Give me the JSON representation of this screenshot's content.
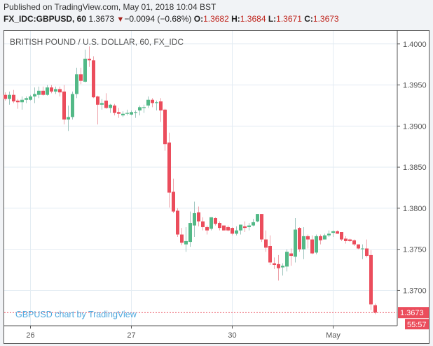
{
  "header": {
    "published": "Published on TradingView.com, May 01, 2018 10:04 BST",
    "symbol": "FX_IDC:GBPUSD, 60",
    "last": "1.3673",
    "change": "−0.0094 (−0.68%)",
    "direction_icon": "triangle-down-icon",
    "o_label": "O:",
    "o": "1.3682",
    "h_label": "H:",
    "h": "1.3684",
    "l_label": "L:",
    "l": "1.3671",
    "c_label": "C:",
    "c": "1.3673"
  },
  "watermark": "GBPUSD chart by TradingView",
  "colors": {
    "up": "#53b987",
    "down": "#eb4d5c",
    "up_wick": "#9cc4bd",
    "down_wick": "#eea3ab",
    "grid": "#e3ecf3",
    "watermark": "#4ea8de"
  },
  "chart_data": {
    "type": "candlestick",
    "title": "BRITISH POUND / U.S. DOLLAR, 60, FX_IDC",
    "ylim": [
      1.3657,
      1.4016
    ],
    "y_ticks": [
      "1.4000",
      "1.3950",
      "1.3900",
      "1.3850",
      "1.3800",
      "1.3750",
      "1.3700"
    ],
    "x_ticks": [
      {
        "label": "26",
        "bar": 6
      },
      {
        "label": "27",
        "bar": 30
      },
      {
        "label": "30",
        "bar": 54
      },
      {
        "label": "May",
        "bar": 78
      }
    ],
    "grid": true,
    "last_price_label": "1.3673",
    "countdown_label": "55:57",
    "ohlc": [
      [
        1.3938,
        1.3941,
        1.3931,
        1.3933
      ],
      [
        1.3933,
        1.3942,
        1.3926,
        1.3938
      ],
      [
        1.3938,
        1.3944,
        1.3928,
        1.393
      ],
      [
        1.3931,
        1.3933,
        1.3921,
        1.3929
      ],
      [
        1.3929,
        1.3936,
        1.392,
        1.3932
      ],
      [
        1.3932,
        1.3936,
        1.3928,
        1.3934
      ],
      [
        1.3932,
        1.3938,
        1.3931,
        1.3936
      ],
      [
        1.3936,
        1.3947,
        1.3928,
        1.3939
      ],
      [
        1.3938,
        1.3948,
        1.3934,
        1.3943
      ],
      [
        1.3943,
        1.3948,
        1.3937,
        1.3938
      ],
      [
        1.3938,
        1.395,
        1.3937,
        1.3947
      ],
      [
        1.3947,
        1.395,
        1.394,
        1.3942
      ],
      [
        1.3942,
        1.3948,
        1.3939,
        1.3945
      ],
      [
        1.3945,
        1.3948,
        1.3936,
        1.3941
      ],
      [
        1.3942,
        1.395,
        1.3902,
        1.3908
      ],
      [
        1.3908,
        1.3925,
        1.3894,
        1.3911
      ],
      [
        1.3911,
        1.3942,
        1.3908,
        1.3939
      ],
      [
        1.3939,
        1.3971,
        1.3934,
        1.3963
      ],
      [
        1.3963,
        1.3971,
        1.3951,
        1.3955
      ],
      [
        1.3954,
        1.3993,
        1.3953,
        1.3982
      ],
      [
        1.3982,
        1.3997,
        1.3972,
        1.398
      ],
      [
        1.398,
        1.3985,
        1.3934,
        1.3935
      ],
      [
        1.3936,
        1.3937,
        1.3902,
        1.3926
      ],
      [
        1.3926,
        1.3933,
        1.392,
        1.3928
      ],
      [
        1.3931,
        1.394,
        1.3921,
        1.3922
      ],
      [
        1.3922,
        1.3927,
        1.3916,
        1.3926
      ],
      [
        1.3925,
        1.3927,
        1.3913,
        1.3916
      ],
      [
        1.3917,
        1.3922,
        1.391,
        1.3915
      ],
      [
        1.3913,
        1.3918,
        1.3911,
        1.3915
      ],
      [
        1.3915,
        1.392,
        1.3913,
        1.3916
      ],
      [
        1.3914,
        1.3919,
        1.3913,
        1.3917
      ],
      [
        1.3916,
        1.3919,
        1.391,
        1.3917
      ],
      [
        1.3919,
        1.3925,
        1.3913,
        1.3923
      ],
      [
        1.3922,
        1.3926,
        1.3916,
        1.3923
      ],
      [
        1.3925,
        1.3936,
        1.3922,
        1.3932
      ],
      [
        1.3932,
        1.3934,
        1.3923,
        1.3928
      ],
      [
        1.3928,
        1.3931,
        1.3919,
        1.3929
      ],
      [
        1.393,
        1.3934,
        1.3905,
        1.3919
      ],
      [
        1.392,
        1.3921,
        1.387,
        1.3878
      ],
      [
        1.388,
        1.3892,
        1.3801,
        1.3819
      ],
      [
        1.382,
        1.3836,
        1.3794,
        1.3796
      ],
      [
        1.3797,
        1.38,
        1.3765,
        1.3768
      ],
      [
        1.3768,
        1.3776,
        1.3755,
        1.3758
      ],
      [
        1.3756,
        1.3777,
        1.3747,
        1.376
      ],
      [
        1.3759,
        1.3796,
        1.3753,
        1.3782
      ],
      [
        1.3779,
        1.3808,
        1.3765,
        1.3794
      ],
      [
        1.3795,
        1.3802,
        1.3778,
        1.3784
      ],
      [
        1.3784,
        1.3789,
        1.3773,
        1.3777
      ],
      [
        1.3777,
        1.3779,
        1.3768,
        1.3773
      ],
      [
        1.3775,
        1.3789,
        1.3773,
        1.3789
      ],
      [
        1.3788,
        1.3789,
        1.3779,
        1.3781
      ],
      [
        1.3782,
        1.3784,
        1.3773,
        1.3776
      ],
      [
        1.3779,
        1.3779,
        1.3773,
        1.3773
      ],
      [
        1.3777,
        1.3779,
        1.3772,
        1.3773
      ],
      [
        1.3776,
        1.3777,
        1.3767,
        1.3769
      ],
      [
        1.3769,
        1.3778,
        1.3767,
        1.3773
      ],
      [
        1.3773,
        1.378,
        1.3768,
        1.378
      ],
      [
        1.3778,
        1.3784,
        1.3771,
        1.3776
      ],
      [
        1.3777,
        1.3782,
        1.3773,
        1.3779
      ],
      [
        1.3779,
        1.3787,
        1.3778,
        1.3783
      ],
      [
        1.3784,
        1.3793,
        1.3783,
        1.3793
      ],
      [
        1.3793,
        1.3793,
        1.3759,
        1.3762
      ],
      [
        1.3762,
        1.3773,
        1.3747,
        1.3752
      ],
      [
        1.3754,
        1.3767,
        1.3731,
        1.3734
      ],
      [
        1.3733,
        1.374,
        1.3726,
        1.3731
      ],
      [
        1.3732,
        1.3743,
        1.3712,
        1.3727
      ],
      [
        1.3728,
        1.3733,
        1.3718,
        1.373
      ],
      [
        1.3729,
        1.375,
        1.3723,
        1.3747
      ],
      [
        1.3745,
        1.3751,
        1.373,
        1.3742
      ],
      [
        1.3741,
        1.3788,
        1.3734,
        1.3774
      ],
      [
        1.3776,
        1.3777,
        1.3747,
        1.375
      ],
      [
        1.375,
        1.3777,
        1.3738,
        1.3766
      ],
      [
        1.3766,
        1.3768,
        1.3751,
        1.3762
      ],
      [
        1.3762,
        1.3767,
        1.3744,
        1.3745
      ],
      [
        1.3746,
        1.3768,
        1.3744,
        1.3766
      ],
      [
        1.3766,
        1.3768,
        1.3756,
        1.3761
      ],
      [
        1.3762,
        1.3769,
        1.3762,
        1.3767
      ],
      [
        1.3767,
        1.3773,
        1.3765,
        1.3769
      ],
      [
        1.377,
        1.3773,
        1.3765,
        1.3772
      ],
      [
        1.3772,
        1.3773,
        1.3769,
        1.3769
      ],
      [
        1.3771,
        1.3771,
        1.376,
        1.3762
      ],
      [
        1.3763,
        1.3766,
        1.3757,
        1.376
      ],
      [
        1.3762,
        1.3763,
        1.3759,
        1.376
      ],
      [
        1.3761,
        1.3762,
        1.3754,
        1.3756
      ],
      [
        1.3756,
        1.3756,
        1.375,
        1.3751
      ],
      [
        1.3751,
        1.3756,
        1.3738,
        1.3751
      ],
      [
        1.3751,
        1.3762,
        1.374,
        1.3742
      ],
      [
        1.3743,
        1.3749,
        1.3676,
        1.3683
      ],
      [
        1.3682,
        1.3684,
        1.3671,
        1.3673
      ]
    ]
  }
}
